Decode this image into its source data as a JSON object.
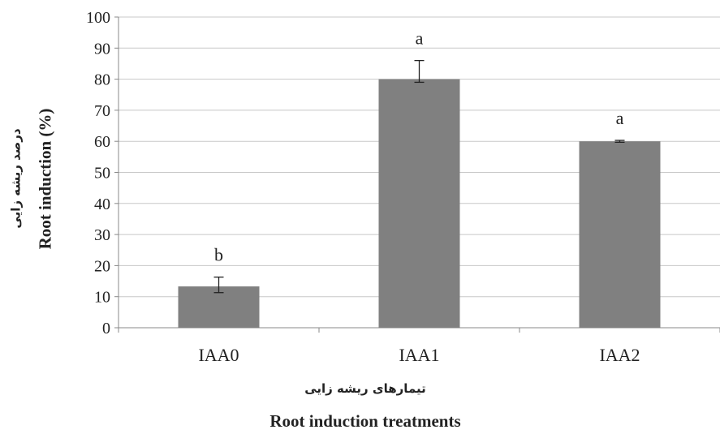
{
  "chart_data": {
    "type": "bar",
    "categories": [
      "IAA0",
      "IAA1",
      "IAA2"
    ],
    "values": [
      13.3,
      80,
      60
    ],
    "error_plus": [
      3,
      6,
      0.3
    ],
    "error_minus": [
      2,
      1,
      0.3
    ],
    "letters": [
      "b",
      "a",
      "a"
    ],
    "ylabel": "Root induction (%)",
    "ylabel_persian": "درصد ریشه زایی",
    "xlabel": "Root induction treatments",
    "xlabel_persian": "تیمارهای  ریشه زایی",
    "ylim": [
      0,
      100
    ],
    "yticks": [
      0,
      10,
      20,
      30,
      40,
      50,
      60,
      70,
      80,
      90,
      100
    ],
    "grid": true,
    "legend": "none",
    "bar_color": "#808080",
    "grid_color": "#c8c8c8"
  }
}
